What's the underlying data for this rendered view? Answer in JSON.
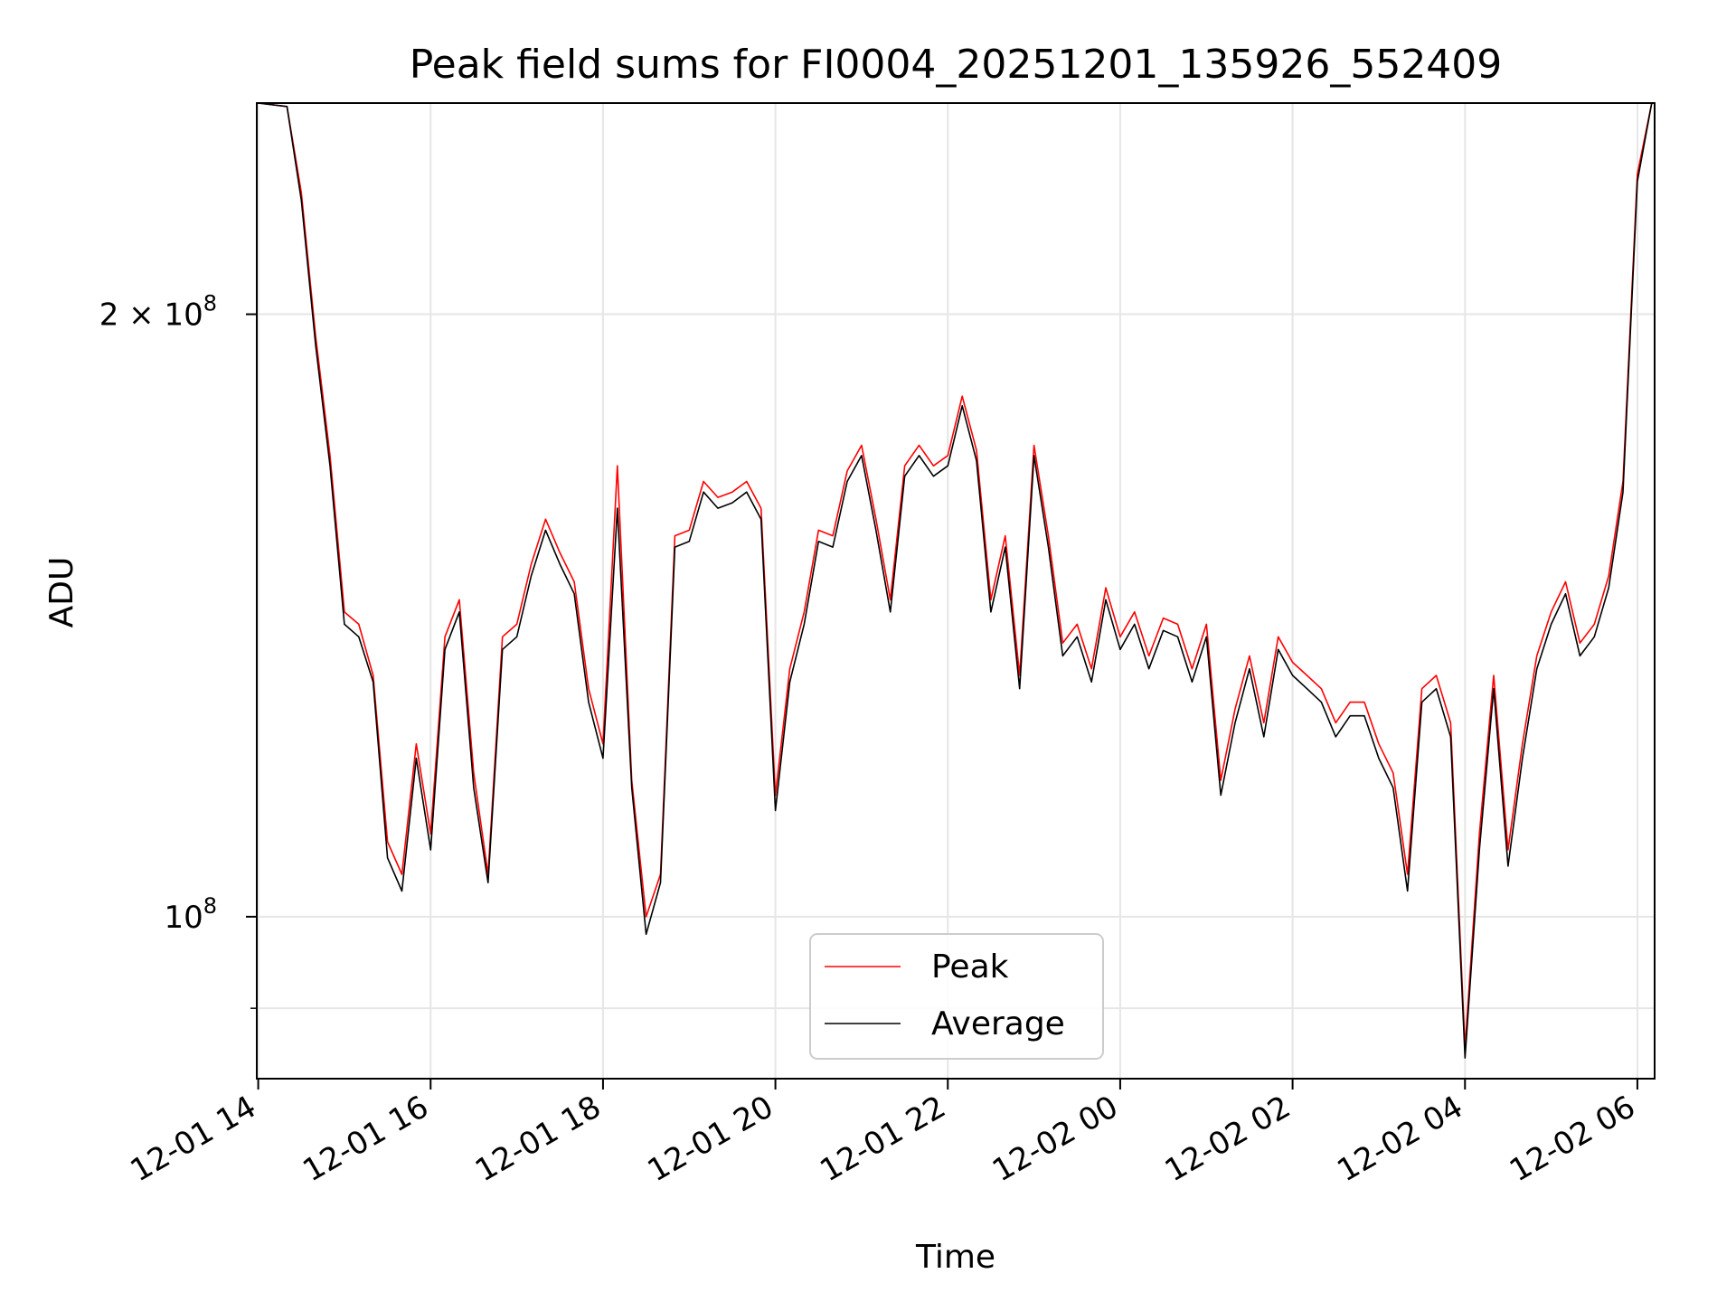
{
  "chart_data": {
    "type": "line",
    "title": "Peak field sums for FI0004_20251201_135926_552409",
    "xlabel": "Time",
    "ylabel": "ADU",
    "y_scale": "log",
    "xlim": [
      "2025-12-01 13:59",
      "2025-12-02 06:12"
    ],
    "ylim": [
      83000000.0,
      255000000.0
    ],
    "grid": true,
    "legend_position": "bottom-center",
    "x_tick_labels": [
      "12-01 14",
      "12-01 16",
      "12-01 18",
      "12-01 20",
      "12-01 22",
      "12-02 00",
      "12-02 02",
      "12-02 04",
      "12-02 06"
    ],
    "x_tick_dates": [
      "2025-12-01 14:00",
      "2025-12-01 16:00",
      "2025-12-01 18:00",
      "2025-12-01 20:00",
      "2025-12-01 22:00",
      "2025-12-02 00:00",
      "2025-12-02 02:00",
      "2025-12-02 04:00",
      "2025-12-02 06:00"
    ],
    "y_tick_labels": [
      {
        "value": 100000000,
        "base": "10",
        "exp": "8"
      },
      {
        "value": 200000000,
        "base": "2 × 10",
        "exp": "8"
      }
    ],
    "x": [
      "2025-12-01 14:00",
      "2025-12-01 14:20",
      "2025-12-01 14:30",
      "2025-12-01 14:40",
      "2025-12-01 14:50",
      "2025-12-01 15:00",
      "2025-12-01 15:10",
      "2025-12-01 15:20",
      "2025-12-01 15:30",
      "2025-12-01 15:40",
      "2025-12-01 15:50",
      "2025-12-01 16:00",
      "2025-12-01 16:10",
      "2025-12-01 16:20",
      "2025-12-01 16:30",
      "2025-12-01 16:40",
      "2025-12-01 16:50",
      "2025-12-01 17:00",
      "2025-12-01 17:10",
      "2025-12-01 17:20",
      "2025-12-01 17:30",
      "2025-12-01 17:40",
      "2025-12-01 17:50",
      "2025-12-01 18:00",
      "2025-12-01 18:10",
      "2025-12-01 18:20",
      "2025-12-01 18:30",
      "2025-12-01 18:40",
      "2025-12-01 18:50",
      "2025-12-01 19:00",
      "2025-12-01 19:10",
      "2025-12-01 19:20",
      "2025-12-01 19:30",
      "2025-12-01 19:40",
      "2025-12-01 19:50",
      "2025-12-01 20:00",
      "2025-12-01 20:10",
      "2025-12-01 20:20",
      "2025-12-01 20:30",
      "2025-12-01 20:40",
      "2025-12-01 20:50",
      "2025-12-01 21:00",
      "2025-12-01 21:10",
      "2025-12-01 21:20",
      "2025-12-01 21:30",
      "2025-12-01 21:40",
      "2025-12-01 21:50",
      "2025-12-01 22:00",
      "2025-12-01 22:10",
      "2025-12-01 22:20",
      "2025-12-01 22:30",
      "2025-12-01 22:40",
      "2025-12-01 22:50",
      "2025-12-01 23:00",
      "2025-12-01 23:10",
      "2025-12-01 23:20",
      "2025-12-01 23:30",
      "2025-12-01 23:40",
      "2025-12-01 23:50",
      "2025-12-02 00:00",
      "2025-12-02 00:10",
      "2025-12-02 00:20",
      "2025-12-02 00:30",
      "2025-12-02 00:40",
      "2025-12-02 00:50",
      "2025-12-02 01:00",
      "2025-12-02 01:10",
      "2025-12-02 01:20",
      "2025-12-02 01:30",
      "2025-12-02 01:40",
      "2025-12-02 01:50",
      "2025-12-02 02:00",
      "2025-12-02 02:10",
      "2025-12-02 02:20",
      "2025-12-02 02:30",
      "2025-12-02 02:40",
      "2025-12-02 02:50",
      "2025-12-02 03:00",
      "2025-12-02 03:10",
      "2025-12-02 03:20",
      "2025-12-02 03:30",
      "2025-12-02 03:40",
      "2025-12-02 03:50",
      "2025-12-02 04:00",
      "2025-12-02 04:10",
      "2025-12-02 04:20",
      "2025-12-02 04:30",
      "2025-12-02 04:40",
      "2025-12-02 04:50",
      "2025-12-02 05:00",
      "2025-12-02 05:10",
      "2025-12-02 05:20",
      "2025-12-02 05:30",
      "2025-12-02 05:40",
      "2025-12-02 05:50",
      "2025-12-02 06:00",
      "2025-12-02 06:10"
    ],
    "series": [
      {
        "name": "Peak",
        "color": "#ff0000",
        "values": [
          255000000.0,
          254000000.0,
          230000000.0,
          195000000.0,
          170000000.0,
          142000000.0,
          140000000.0,
          132000000.0,
          109000000.0,
          105000000.0,
          122000000.0,
          110000000.0,
          138000000.0,
          144000000.0,
          118000000.0,
          105000000.0,
          138000000.0,
          140000000.0,
          150000000.0,
          158000000.0,
          152000000.0,
          147000000.0,
          130000000.0,
          122000000.0,
          168000000.0,
          117000000.0,
          100000000.0,
          105000000.0,
          155000000.0,
          156000000.0,
          165000000.0,
          162000000.0,
          163000000.0,
          165000000.0,
          160000000.0,
          115000000.0,
          133000000.0,
          142000000.0,
          156000000.0,
          155000000.0,
          167000000.0,
          172000000.0,
          158000000.0,
          144000000.0,
          168000000.0,
          172000000.0,
          168000000.0,
          170000000.0,
          182000000.0,
          171000000.0,
          144000000.0,
          155000000.0,
          132000000.0,
          172000000.0,
          155000000.0,
          137000000.0,
          140000000.0,
          133000000.0,
          146000000.0,
          138000000.0,
          142000000.0,
          135000000.0,
          141000000.0,
          140000000.0,
          133000000.0,
          140000000.0,
          117000000.0,
          127000000.0,
          135000000.0,
          125000000.0,
          138000000.0,
          134000000.0,
          132000000.0,
          130000000.0,
          125000000.0,
          128000000.0,
          128000000.0,
          122000000.0,
          118000000.0,
          105000000.0,
          130000000.0,
          132000000.0,
          125000000.0,
          86000000.0,
          110000000.0,
          132000000.0,
          108000000.0,
          122000000.0,
          135000000.0,
          142000000.0,
          147000000.0,
          137000000.0,
          140000000.0,
          148000000.0,
          165000000.0,
          235000000.0,
          255000000.0
        ]
      },
      {
        "name": "Average",
        "color": "#000000",
        "values": [
          255000000.0,
          254000000.0,
          228000000.0,
          193000000.0,
          168000000.0,
          140000000.0,
          138000000.0,
          131000000.0,
          107000000.0,
          103000000.0,
          120000000.0,
          108000000.0,
          136000000.0,
          142000000.0,
          116000000.0,
          104000000.0,
          136000000.0,
          138000000.0,
          148000000.0,
          156000000.0,
          150000000.0,
          145000000.0,
          128000000.0,
          120000000.0,
          160000000.0,
          116000000.0,
          98000000.0,
          104000000.0,
          153000000.0,
          154000000.0,
          163000000.0,
          160000000.0,
          161000000.0,
          163000000.0,
          158000000.0,
          113000000.0,
          131000000.0,
          140000000.0,
          154000000.0,
          153000000.0,
          165000000.0,
          170000000.0,
          156000000.0,
          142000000.0,
          166000000.0,
          170000000.0,
          166000000.0,
          168000000.0,
          180000000.0,
          169000000.0,
          142000000.0,
          153000000.0,
          130000000.0,
          170000000.0,
          153000000.0,
          135000000.0,
          138000000.0,
          131000000.0,
          144000000.0,
          136000000.0,
          140000000.0,
          133000000.0,
          139000000.0,
          138000000.0,
          131000000.0,
          138000000.0,
          115000000.0,
          125000000.0,
          133000000.0,
          123000000.0,
          136000000.0,
          132000000.0,
          130000000.0,
          128000000.0,
          123000000.0,
          126000000.0,
          126000000.0,
          120000000.0,
          116000000.0,
          103000000.0,
          128000000.0,
          130000000.0,
          123000000.0,
          85000000.0,
          108000000.0,
          130000000.0,
          106000000.0,
          120000000.0,
          133000000.0,
          140000000.0,
          145000000.0,
          135000000.0,
          138000000.0,
          146000000.0,
          163000000.0,
          233000000.0,
          255000000.0
        ]
      }
    ]
  }
}
